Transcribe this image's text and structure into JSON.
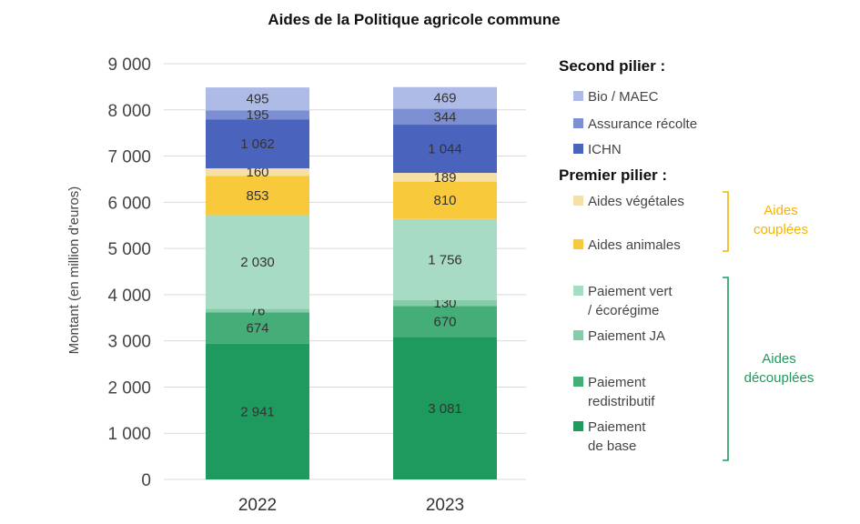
{
  "chart_data": {
    "type": "bar",
    "stacked": true,
    "title": "Aides de la Politique agricole commune",
    "ylabel": "Montant (en million d'euros)",
    "ylim": [
      0,
      9000
    ],
    "yticks": [
      0,
      1000,
      2000,
      3000,
      4000,
      5000,
      6000,
      7000,
      8000,
      9000
    ],
    "ytick_labels": [
      "0",
      "1 000",
      "2 000",
      "3 000",
      "4 000",
      "5 000",
      "6 000",
      "7 000",
      "8 000",
      "9 000"
    ],
    "categories": [
      "2022",
      "2023"
    ],
    "grid": true,
    "legend_position": "right",
    "series": [
      {
        "name": "Paiement de base",
        "color": "#1e9a5e",
        "values": [
          2941,
          3081
        ],
        "labels": [
          "2 941",
          "3 081"
        ]
      },
      {
        "name": "Paiement redistributif",
        "color": "#44ad78",
        "values": [
          674,
          670
        ],
        "labels": [
          "674",
          "670"
        ]
      },
      {
        "name": "Paiement JA",
        "color": "#86cca9",
        "values": [
          76,
          130
        ],
        "labels": [
          "76",
          "130"
        ]
      },
      {
        "name": "Paiement vert / écorégime",
        "color": "#a8dbc3",
        "values": [
          2030,
          1756
        ],
        "labels": [
          "2 030",
          "1 756"
        ]
      },
      {
        "name": "Aides animales",
        "color": "#f9c93c",
        "values": [
          853,
          810
        ],
        "labels": [
          "853",
          "810"
        ]
      },
      {
        "name": "Aides végétales",
        "color": "#f7e0a3",
        "values": [
          160,
          189
        ],
        "labels": [
          "160",
          "189"
        ]
      },
      {
        "name": "ICHN",
        "color": "#4a63bd",
        "values": [
          1062,
          1044
        ],
        "labels": [
          "1 062",
          "1 044"
        ]
      },
      {
        "name": "Assurance récolte",
        "color": "#7c8fd3",
        "values": [
          195,
          344
        ],
        "labels": [
          "195",
          "344"
        ]
      },
      {
        "name": "Bio / MAEC",
        "color": "#aebbe6",
        "values": [
          495,
          469
        ],
        "labels": [
          "495",
          "469"
        ]
      }
    ],
    "legend": {
      "second_pilier_title": "Second pilier :",
      "second_pilier_items": [
        {
          "lines": [
            "Bio / MAEC"
          ],
          "color": "#aebbe6"
        },
        {
          "lines": [
            "Assurance récolte"
          ],
          "color": "#7c8fd3"
        },
        {
          "lines": [
            "ICHN"
          ],
          "color": "#4a63bd"
        }
      ],
      "premier_pilier_title": "Premier pilier :",
      "premier_pilier_items": [
        {
          "lines": [
            "Aides végétales"
          ],
          "color": "#f7e0a3"
        },
        {
          "lines": [
            "Aides animales"
          ],
          "color": "#f9c93c"
        },
        {
          "lines": [
            "Paiement vert",
            "/ écorégime"
          ],
          "color": "#a8dbc3"
        },
        {
          "lines": [
            "Paiement JA"
          ],
          "color": "#86cca9"
        },
        {
          "lines": [
            "Paiement",
            "redistributif"
          ],
          "color": "#44ad78"
        },
        {
          "lines": [
            "Paiement",
            "de base"
          ],
          "color": "#1e9a5e"
        }
      ],
      "groups": [
        {
          "lines": [
            "Aides",
            "couplées"
          ],
          "color": "#f2b400"
        },
        {
          "lines": [
            "Aides",
            "découplées"
          ],
          "color": "#1e9a5e"
        }
      ]
    }
  }
}
